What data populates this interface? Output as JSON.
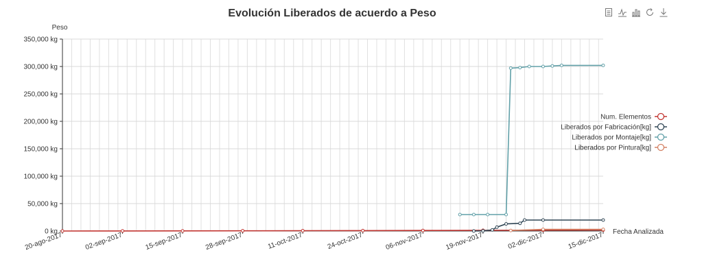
{
  "toolbar": {
    "icons": [
      "data-view-icon",
      "line-chart-icon",
      "bar-chart-icon",
      "restore-icon",
      "download-icon"
    ]
  },
  "chart_data": {
    "type": "line",
    "title": "Evolución Liberados de acuerdo a Peso",
    "xlabel": "Fecha Analizada",
    "ylabel": "Peso",
    "ylim": [
      0,
      350000
    ],
    "y_ticks": [
      "0 kg",
      "50,000 kg",
      "100,000 kg",
      "150,000 kg",
      "200,000 kg",
      "250,000 kg",
      "300,000 kg",
      "350,000 kg"
    ],
    "x_ticks": [
      "20-ago-2017",
      "02-sep-2017",
      "15-sep-2017",
      "28-sep-2017",
      "11-oct-2017",
      "24-oct-2017",
      "06-nov-2017",
      "19-nov-2017",
      "02-dic-2017",
      "15-dic-2017"
    ],
    "x_range": [
      "2017-08-20",
      "2017-12-15"
    ],
    "grid": true,
    "legend_position": "right",
    "series": [
      {
        "name": "Num. Elementos",
        "color": "#c23531",
        "points": [
          [
            "2017-08-20",
            0
          ],
          [
            "2017-09-02",
            100
          ],
          [
            "2017-09-15",
            200
          ],
          [
            "2017-09-28",
            400
          ],
          [
            "2017-10-11",
            600
          ],
          [
            "2017-10-24",
            800
          ],
          [
            "2017-11-06",
            1000
          ],
          [
            "2017-11-19",
            1300
          ],
          [
            "2017-12-02",
            1500
          ],
          [
            "2017-12-15",
            1700
          ]
        ]
      },
      {
        "name": "Liberados por Fabricación[kg]",
        "color": "#2f4554",
        "points": [
          [
            "2017-11-17",
            0
          ],
          [
            "2017-11-19",
            300
          ],
          [
            "2017-11-21",
            2000
          ],
          [
            "2017-11-22",
            7000
          ],
          [
            "2017-11-24",
            13000
          ],
          [
            "2017-11-27",
            14000
          ],
          [
            "2017-11-28",
            20000
          ],
          [
            "2017-12-02",
            20000
          ],
          [
            "2017-12-15",
            20000
          ]
        ]
      },
      {
        "name": "Liberados por Montaje[kg]",
        "color": "#61a0a8",
        "points": [
          [
            "2017-11-14",
            30000
          ],
          [
            "2017-11-17",
            30000
          ],
          [
            "2017-11-20",
            30000
          ],
          [
            "2017-11-24",
            30000
          ],
          [
            "2017-11-25",
            297000
          ],
          [
            "2017-11-27",
            298000
          ],
          [
            "2017-11-29",
            300000
          ],
          [
            "2017-12-02",
            300000
          ],
          [
            "2017-12-04",
            301000
          ],
          [
            "2017-12-06",
            302000
          ],
          [
            "2017-12-15",
            302000
          ]
        ]
      },
      {
        "name": "Liberados por Pintura[kg]",
        "color": "#d48265",
        "points": [
          [
            "2017-11-25",
            1000
          ],
          [
            "2017-12-02",
            3000
          ],
          [
            "2017-12-15",
            3000
          ]
        ]
      }
    ]
  }
}
